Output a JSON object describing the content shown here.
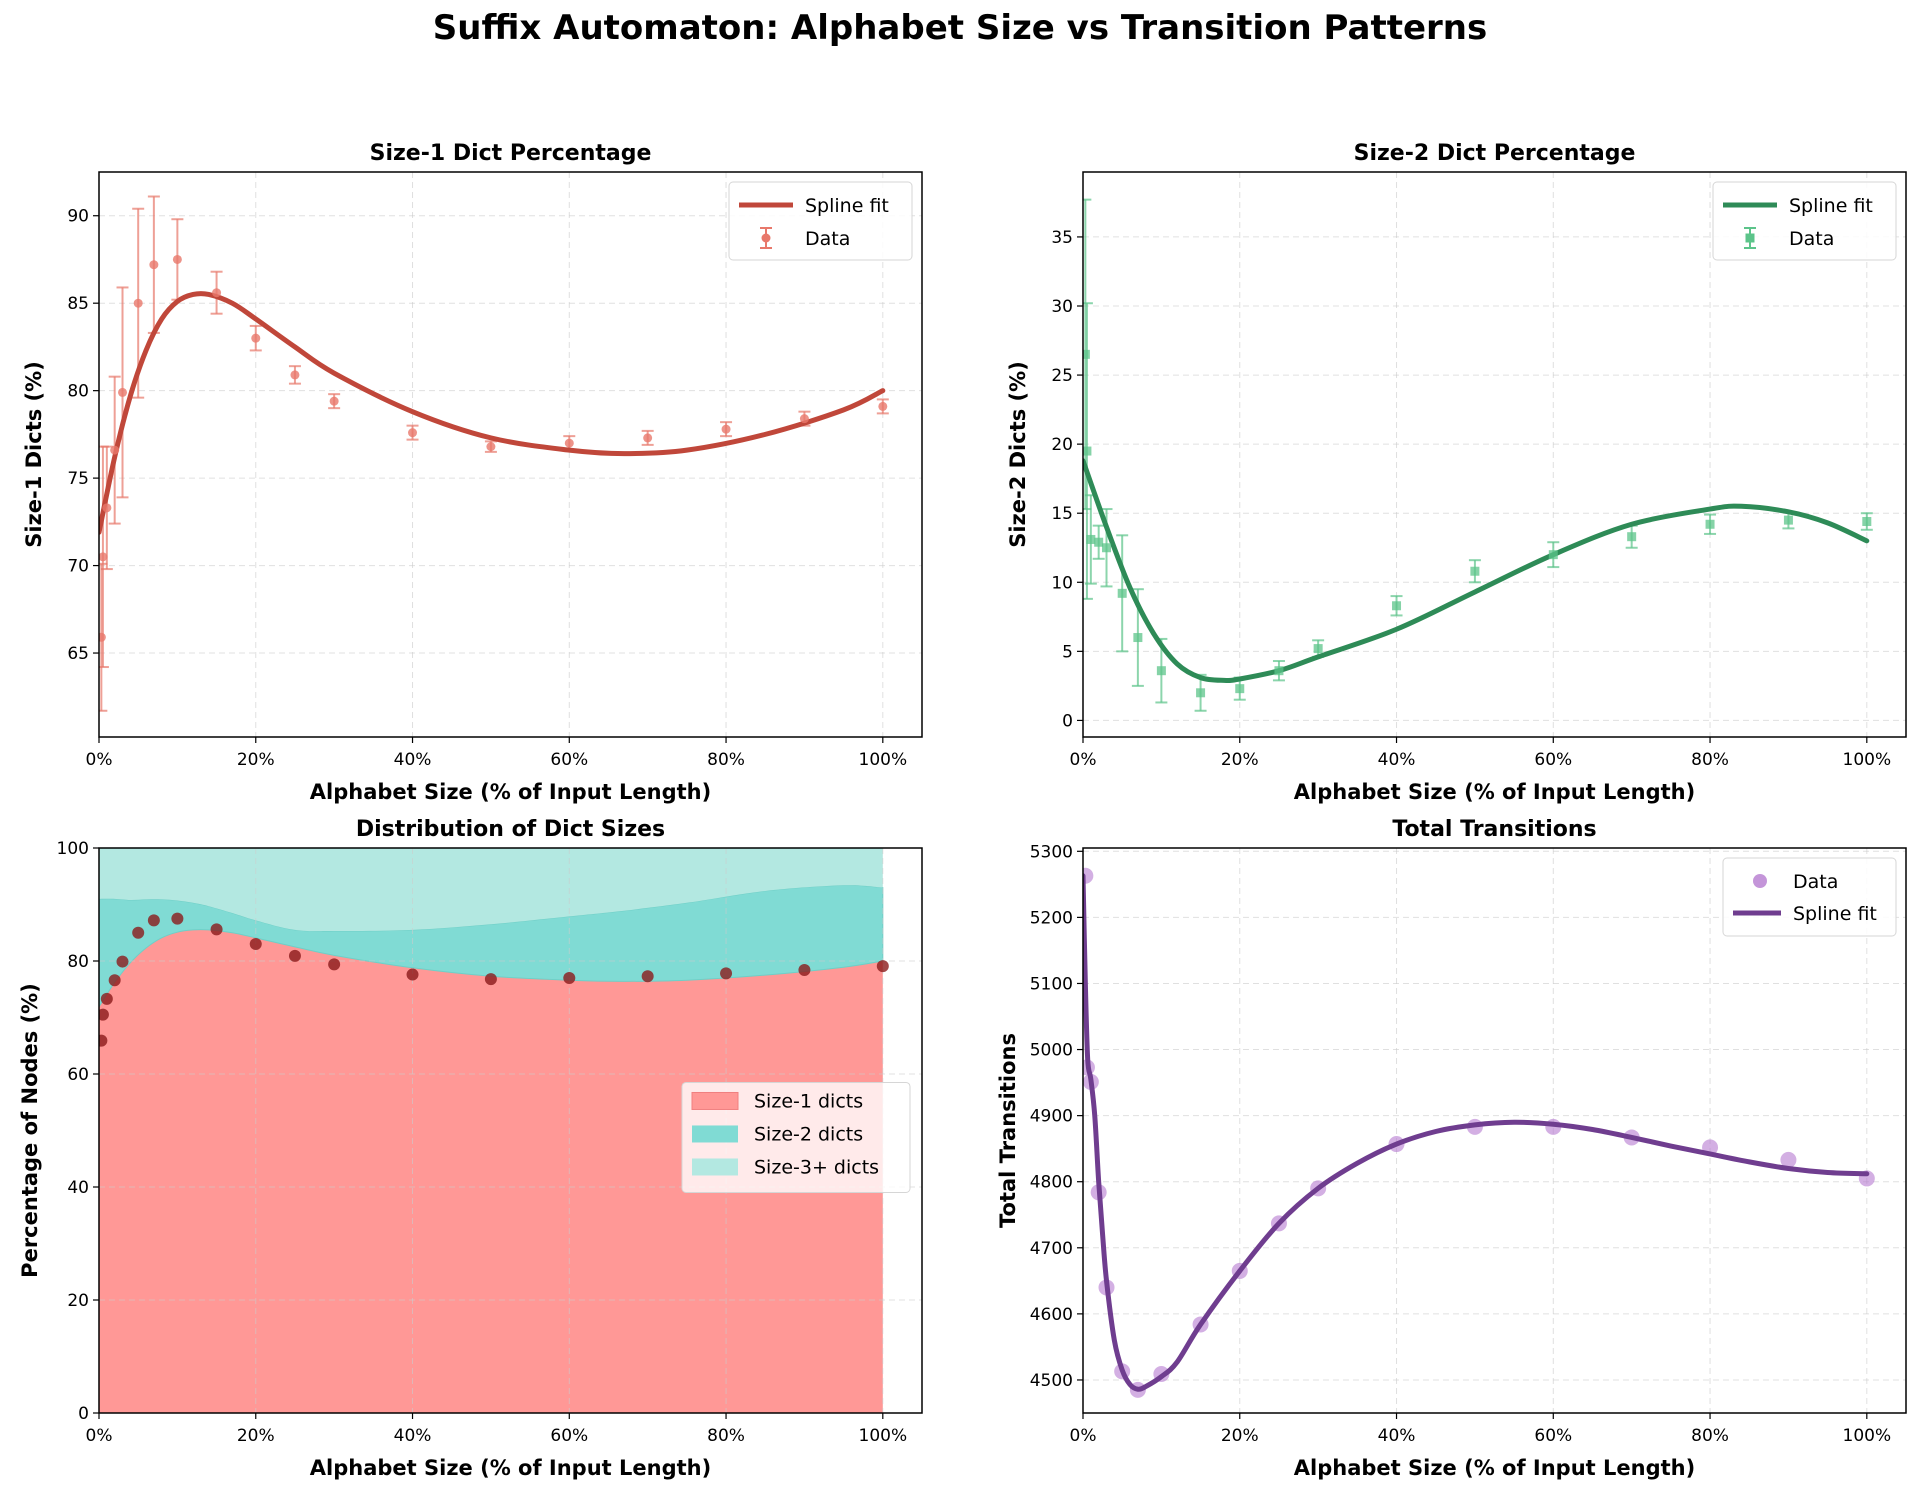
{
  "figure_title": "Suffix Automaton: Alphabet Size vs Transition Patterns",
  "colors": {
    "size1_line": "#c0473a",
    "size1_points": "#e8786b",
    "size2_line": "#2e8b57",
    "size2_points": "#5cc48a",
    "purple_line": "#6f3d8f",
    "purple_points": "#b57ad0",
    "area1": "#ff9896",
    "area2": "#80dbd4",
    "area3": "#b3e8e1",
    "scatter_dark": "#8b1a1a"
  },
  "chart_data": [
    {
      "type": "line",
      "id": "size1",
      "title": "Size-1 Dict Percentage",
      "xlabel": "Alphabet Size (% of Input Length)",
      "ylabel": "Size-1 Dicts (%)",
      "xlim": [
        0,
        105
      ],
      "ylim": [
        60.2,
        92.5
      ],
      "xticks": [
        0,
        20,
        40,
        60,
        80,
        100
      ],
      "xtick_labels": [
        "0%",
        "20%",
        "40%",
        "60%",
        "80%",
        "100%"
      ],
      "yticks": [
        65,
        70,
        75,
        80,
        85,
        90
      ],
      "ytick_labels": [
        "65",
        "70",
        "75",
        "80",
        "85",
        "90"
      ],
      "grid": true,
      "legend_position": "top-right",
      "legend": [
        "Spline fit",
        "Data"
      ],
      "data": {
        "x": [
          0.3,
          0.5,
          1,
          2,
          3,
          5,
          7,
          10,
          15,
          20,
          25,
          30,
          40,
          50,
          60,
          70,
          80,
          90,
          100
        ],
        "y": [
          65.9,
          70.5,
          73.3,
          76.6,
          79.9,
          85.0,
          87.2,
          87.5,
          85.6,
          83.0,
          80.9,
          79.4,
          77.6,
          76.8,
          77.0,
          77.3,
          77.8,
          78.4,
          79.1
        ],
        "err": [
          4.2,
          6.3,
          3.5,
          4.2,
          6.0,
          5.4,
          3.9,
          2.3,
          1.2,
          0.7,
          0.5,
          0.4,
          0.4,
          0.3,
          0.4,
          0.4,
          0.4,
          0.4,
          0.4
        ]
      },
      "spline": {
        "x": [
          0,
          2,
          4,
          6,
          8,
          10,
          12,
          14,
          17,
          20,
          25,
          30,
          40,
          50,
          60,
          67,
          75,
          85,
          95,
          100
        ],
        "y": [
          71.9,
          76.2,
          79.7,
          82.3,
          84.1,
          85.1,
          85.5,
          85.5,
          85.0,
          84.1,
          82.5,
          81.0,
          78.8,
          77.3,
          76.6,
          76.4,
          76.6,
          77.5,
          78.9,
          80.0
        ]
      }
    },
    {
      "type": "line",
      "id": "size2",
      "title": "Size-2 Dict Percentage",
      "xlabel": "Alphabet Size (% of Input Length)",
      "ylabel": "Size-2 Dicts (%)",
      "xlim": [
        0,
        105
      ],
      "ylim": [
        -1.2,
        39.7
      ],
      "xticks": [
        0,
        20,
        40,
        60,
        80,
        100
      ],
      "xtick_labels": [
        "0%",
        "20%",
        "40%",
        "60%",
        "80%",
        "100%"
      ],
      "yticks": [
        0,
        5,
        10,
        15,
        20,
        25,
        30,
        35
      ],
      "ytick_labels": [
        "0",
        "5",
        "10",
        "15",
        "20",
        "25",
        "30",
        "35"
      ],
      "grid": true,
      "legend_position": "top-right",
      "legend": [
        "Spline fit",
        "Data"
      ],
      "data": {
        "x": [
          0.3,
          0.5,
          1,
          2,
          3,
          5,
          7,
          10,
          15,
          20,
          25,
          30,
          40,
          50,
          60,
          70,
          80,
          90,
          100
        ],
        "y": [
          26.5,
          19.5,
          13.1,
          12.9,
          12.5,
          9.2,
          6.0,
          3.6,
          2.0,
          2.3,
          3.6,
          5.2,
          8.3,
          10.8,
          12.0,
          13.3,
          14.2,
          14.5,
          14.4
        ],
        "err": [
          11.2,
          10.7,
          3.2,
          1.2,
          2.8,
          4.2,
          3.5,
          2.3,
          1.3,
          0.8,
          0.7,
          0.6,
          0.7,
          0.8,
          0.9,
          0.8,
          0.7,
          0.6,
          0.6
        ]
      },
      "spline": {
        "x": [
          0,
          3,
          6,
          9,
          12,
          15,
          18,
          20,
          25,
          30,
          40,
          50,
          60,
          70,
          80,
          84,
          90,
          95,
          100
        ],
        "y": [
          18.8,
          14.0,
          9.6,
          6.3,
          4.1,
          3.1,
          2.9,
          3.0,
          3.6,
          4.6,
          6.6,
          9.3,
          12.0,
          14.2,
          15.3,
          15.5,
          15.1,
          14.3,
          13.0
        ]
      }
    },
    {
      "type": "area",
      "id": "distribution",
      "title": "Distribution of Dict Sizes",
      "xlabel": "Alphabet Size (% of Input Length)",
      "ylabel": "Percentage of Nodes (%)",
      "xlim": [
        0,
        105
      ],
      "ylim": [
        0,
        100
      ],
      "xticks": [
        0,
        20,
        40,
        60,
        80,
        100
      ],
      "xtick_labels": [
        "0%",
        "20%",
        "40%",
        "60%",
        "80%",
        "100%"
      ],
      "yticks": [
        0,
        20,
        40,
        60,
        80,
        100
      ],
      "ytick_labels": [
        "0",
        "20",
        "40",
        "60",
        "80",
        "100"
      ],
      "grid": true,
      "legend_position": "center-right",
      "legend": [
        "Size-1 dicts",
        "Size-2 dicts",
        "Size-3+ dicts"
      ],
      "x": [
        0,
        2,
        4,
        6,
        8,
        10,
        12,
        14,
        17,
        20,
        25,
        30,
        40,
        50,
        60,
        67,
        75,
        85,
        95,
        100
      ],
      "series": [
        {
          "name": "Size-1 dicts",
          "values": [
            71.9,
            76.2,
            79.7,
            82.3,
            84.1,
            85.1,
            85.5,
            85.5,
            85.0,
            84.1,
            82.5,
            81.0,
            78.8,
            77.3,
            76.6,
            76.4,
            76.6,
            77.5,
            78.9,
            80.0
          ]
        },
        {
          "name": "Size-2 dicts",
          "values": [
            19.1,
            14.8,
            11.1,
            8.6,
            6.8,
            5.6,
            4.8,
            4.2,
            3.5,
            3.1,
            3.0,
            4.3,
            6.7,
            9.2,
            11.3,
            12.5,
            13.7,
            14.9,
            14.5,
            13.0
          ]
        },
        {
          "name": "Size-3+ dicts",
          "values": [
            9.0,
            9.0,
            9.2,
            9.1,
            9.1,
            9.3,
            9.7,
            10.3,
            11.5,
            12.8,
            14.5,
            14.7,
            14.5,
            13.5,
            12.1,
            11.1,
            9.7,
            7.6,
            6.6,
            7.0
          ]
        }
      ],
      "scatter": {
        "x": [
          0.3,
          0.5,
          1,
          2,
          3,
          5,
          7,
          10,
          15,
          20,
          25,
          30,
          40,
          50,
          60,
          70,
          80,
          90,
          100
        ],
        "y": [
          65.9,
          70.5,
          73.3,
          76.6,
          79.9,
          85.0,
          87.2,
          87.5,
          85.6,
          83.0,
          80.9,
          79.4,
          77.6,
          76.8,
          77.0,
          77.3,
          77.8,
          78.4,
          79.1
        ]
      }
    },
    {
      "type": "line",
      "id": "transitions",
      "title": "Total Transitions",
      "xlabel": "Alphabet Size (% of Input Length)",
      "ylabel": "Total Transitions",
      "xlim": [
        0,
        105
      ],
      "ylim": [
        4450,
        5305
      ],
      "xticks": [
        0,
        20,
        40,
        60,
        80,
        100
      ],
      "xtick_labels": [
        "0%",
        "20%",
        "40%",
        "60%",
        "80%",
        "100%"
      ],
      "yticks": [
        4500,
        4600,
        4700,
        4800,
        4900,
        5000,
        5100,
        5200,
        5300
      ],
      "ytick_labels": [
        "4500",
        "4600",
        "4700",
        "4800",
        "4900",
        "5000",
        "5100",
        "5200",
        "5300"
      ],
      "grid": true,
      "legend_position": "top-right",
      "legend": [
        "Data",
        "Spline fit"
      ],
      "data": {
        "x": [
          0.3,
          0.5,
          1,
          2,
          3,
          5,
          7,
          10,
          15,
          20,
          25,
          30,
          40,
          50,
          60,
          70,
          80,
          90,
          100
        ],
        "y": [
          5263,
          4973,
          4951,
          4784,
          4640,
          4513,
          4485,
          4509,
          4584,
          4665,
          4737,
          4790,
          4857,
          4883,
          4883,
          4867,
          4852,
          4833,
          4805
        ]
      },
      "spline": {
        "x": [
          0,
          0.3,
          0.6,
          1,
          1.5,
          2,
          2.5,
          3,
          4,
          5,
          6,
          7,
          8,
          10,
          12,
          15,
          20,
          25,
          30,
          35,
          40,
          45,
          50,
          55,
          60,
          65,
          70,
          75,
          80,
          85,
          90,
          95,
          100
        ],
        "y": [
          5263,
          5100,
          4985,
          4955,
          4900,
          4800,
          4720,
          4650,
          4560,
          4515,
          4493,
          4486,
          4490,
          4505,
          4527,
          4584,
          4665,
          4737,
          4790,
          4828,
          4857,
          4876,
          4886,
          4890,
          4887,
          4879,
          4867,
          4854,
          4842,
          4830,
          4820,
          4814,
          4812
        ]
      }
    }
  ]
}
